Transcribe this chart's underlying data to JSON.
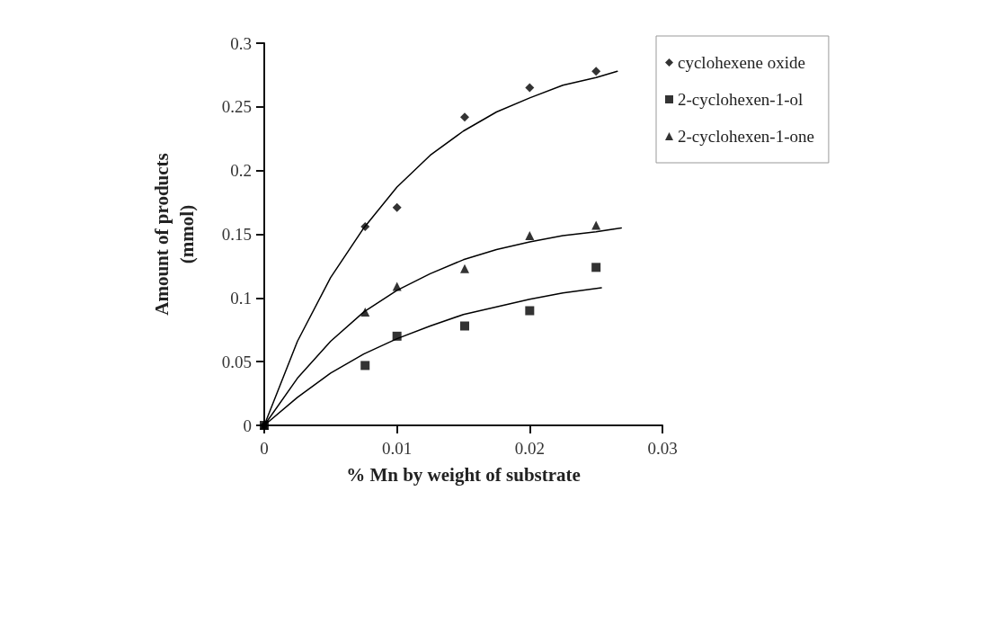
{
  "chart_data": {
    "type": "scatter",
    "xlabel": "% Mn by weight of substrate",
    "ylabel": "Amount of products\n(mmol)",
    "xlim": [
      0,
      0.03
    ],
    "xticks": [
      0,
      0.01,
      0.02,
      0.03
    ],
    "ylim": [
      0,
      0.3
    ],
    "yticks": [
      0,
      0.05,
      0.1,
      0.15,
      0.2,
      0.25,
      0.3
    ],
    "grid": false,
    "legend": "top right",
    "x": [
      0,
      0.0076,
      0.01,
      0.0151,
      0.02,
      0.025
    ],
    "series": [
      {
        "name": "cyclohexene oxide",
        "color": "#000000",
        "marker": "diamond",
        "values": [
          0,
          0.156,
          0.171,
          0.242,
          0.265,
          0.278
        ]
      },
      {
        "name": "2-cyclohexen-1-ol",
        "color": "#000000",
        "marker": "square",
        "values": [
          0,
          0.047,
          0.07,
          0.078,
          0.09,
          0.124
        ]
      },
      {
        "name": "2-cyclohexen-1-one",
        "color": "#000000",
        "marker": "triangle",
        "values": [
          0,
          0.089,
          0.109,
          0.123,
          0.149,
          0.157
        ]
      },
      {
        "type": "line",
        "color": "#000000",
        "marker": "none",
        "line_style": "solid",
        "x": [
          0,
          0.0025,
          0.005,
          0.0075,
          0.01,
          0.0125,
          0.015,
          0.0175,
          0.02,
          0.0225,
          0.025,
          0.0266
        ],
        "values": [
          0,
          0.066,
          0.116,
          0.155,
          0.187,
          0.212,
          0.231,
          0.246,
          0.257,
          0.267,
          0.273,
          0.278
        ]
      },
      {
        "type": "line",
        "color": "#000000",
        "marker": "none",
        "line_style": "solid",
        "x": [
          0,
          0.0025,
          0.005,
          0.0075,
          0.01,
          0.0125,
          0.015,
          0.0175,
          0.02,
          0.0225,
          0.0254
        ],
        "values": [
          0,
          0.022,
          0.041,
          0.056,
          0.068,
          0.078,
          0.087,
          0.093,
          0.099,
          0.104,
          0.108
        ]
      },
      {
        "type": "line",
        "color": "#000000",
        "marker": "none",
        "line_style": "solid",
        "x": [
          0,
          0.0025,
          0.005,
          0.0075,
          0.01,
          0.0125,
          0.015,
          0.0175,
          0.02,
          0.0225,
          0.025,
          0.0269
        ],
        "values": [
          0,
          0.037,
          0.066,
          0.089,
          0.106,
          0.119,
          0.13,
          0.138,
          0.144,
          0.149,
          0.152,
          0.155
        ]
      }
    ]
  }
}
